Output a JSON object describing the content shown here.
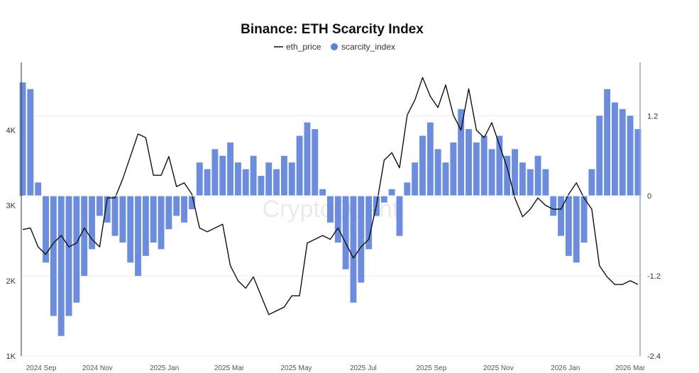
{
  "chart_data": {
    "type": "bar+line",
    "title": "Binance: ETH Scarcity Index",
    "watermark": "CryptoQuant",
    "legend": {
      "placement": "top-center",
      "entries": [
        {
          "name": "eth_price",
          "marker": "line",
          "color": "#111111"
        },
        {
          "name": "scarcity_index",
          "marker": "dot",
          "color": "#5b7fdc"
        }
      ]
    },
    "x_axis": {
      "ticks": [
        {
          "label": "2024 Sep",
          "date": "2024-09-01"
        },
        {
          "label": "2024 Nov",
          "date": "2024-11-01"
        },
        {
          "label": "2025 Jan",
          "date": "2025-01-01"
        },
        {
          "label": "2025 Mar",
          "date": "2025-03-01"
        },
        {
          "label": "2025 May",
          "date": "2025-05-01"
        },
        {
          "label": "2025 Jul",
          "date": "2025-07-01"
        },
        {
          "label": "2025 Sep",
          "date": "2025-09-01"
        },
        {
          "label": "2025 Nov",
          "date": "2025-11-01"
        },
        {
          "label": "2026 Jan",
          "date": "2026-01-01"
        },
        {
          "label": "2026 Mar",
          "date": "2026-03-01"
        }
      ],
      "range": [
        "2024-08-25",
        "2026-03-10"
      ]
    },
    "y_left": {
      "label": "",
      "range": [
        1000,
        4900
      ],
      "ticks": [
        {
          "label": "1K",
          "value": 1000
        },
        {
          "label": "2K",
          "value": 2000
        },
        {
          "label": "3K",
          "value": 3000
        },
        {
          "label": "4K",
          "value": 4000
        }
      ]
    },
    "y_right": {
      "label": "",
      "range": [
        -2.4,
        2.0
      ],
      "ticks": [
        {
          "label": "1.2",
          "value": 1.2
        },
        {
          "label": "0",
          "value": 0
        },
        {
          "label": "-1.2",
          "value": -1.2
        },
        {
          "label": "-2.4",
          "value": -2.4
        }
      ]
    },
    "grid": {
      "horizontal": true,
      "vertical": false
    },
    "series": [
      {
        "name": "eth_price",
        "type": "line",
        "axis": "left",
        "color": "#111111",
        "points": [
          [
            "2024-08-25",
            2680
          ],
          [
            "2024-09-01",
            2700
          ],
          [
            "2024-09-08",
            2450
          ],
          [
            "2024-09-15",
            2350
          ],
          [
            "2024-09-22",
            2500
          ],
          [
            "2024-09-29",
            2600
          ],
          [
            "2024-10-06",
            2450
          ],
          [
            "2024-10-13",
            2500
          ],
          [
            "2024-10-20",
            2700
          ],
          [
            "2024-10-27",
            2550
          ],
          [
            "2024-11-03",
            2450
          ],
          [
            "2024-11-10",
            3100
          ],
          [
            "2024-11-17",
            3100
          ],
          [
            "2024-11-24",
            3350
          ],
          [
            "2024-12-01",
            3650
          ],
          [
            "2024-12-08",
            3950
          ],
          [
            "2024-12-15",
            3900
          ],
          [
            "2024-12-22",
            3400
          ],
          [
            "2024-12-29",
            3400
          ],
          [
            "2025-01-05",
            3650
          ],
          [
            "2025-01-12",
            3250
          ],
          [
            "2025-01-19",
            3300
          ],
          [
            "2025-01-26",
            3150
          ],
          [
            "2025-02-02",
            2700
          ],
          [
            "2025-02-09",
            2650
          ],
          [
            "2025-02-16",
            2700
          ],
          [
            "2025-02-23",
            2750
          ],
          [
            "2025-03-02",
            2200
          ],
          [
            "2025-03-09",
            2000
          ],
          [
            "2025-03-16",
            1900
          ],
          [
            "2025-03-23",
            2050
          ],
          [
            "2025-03-30",
            1800
          ],
          [
            "2025-04-06",
            1550
          ],
          [
            "2025-04-13",
            1600
          ],
          [
            "2025-04-20",
            1650
          ],
          [
            "2025-04-27",
            1800
          ],
          [
            "2025-05-04",
            1800
          ],
          [
            "2025-05-11",
            2500
          ],
          [
            "2025-05-18",
            2550
          ],
          [
            "2025-05-25",
            2600
          ],
          [
            "2025-06-01",
            2550
          ],
          [
            "2025-06-08",
            2700
          ],
          [
            "2025-06-15",
            2500
          ],
          [
            "2025-06-22",
            2300
          ],
          [
            "2025-06-29",
            2450
          ],
          [
            "2025-07-06",
            2550
          ],
          [
            "2025-07-13",
            3000
          ],
          [
            "2025-07-20",
            3600
          ],
          [
            "2025-07-27",
            3700
          ],
          [
            "2025-08-03",
            3500
          ],
          [
            "2025-08-10",
            4200
          ],
          [
            "2025-08-17",
            4400
          ],
          [
            "2025-08-24",
            4700
          ],
          [
            "2025-08-31",
            4450
          ],
          [
            "2025-09-07",
            4300
          ],
          [
            "2025-09-14",
            4600
          ],
          [
            "2025-09-21",
            4200
          ],
          [
            "2025-09-28",
            4000
          ],
          [
            "2025-10-05",
            4550
          ],
          [
            "2025-10-12",
            4000
          ],
          [
            "2025-10-19",
            3900
          ],
          [
            "2025-10-26",
            4100
          ],
          [
            "2025-11-02",
            3800
          ],
          [
            "2025-11-09",
            3500
          ],
          [
            "2025-11-16",
            3100
          ],
          [
            "2025-11-23",
            2850
          ],
          [
            "2025-11-30",
            2950
          ],
          [
            "2025-12-07",
            3100
          ],
          [
            "2025-12-14",
            3000
          ],
          [
            "2025-12-21",
            2950
          ],
          [
            "2025-12-28",
            2950
          ],
          [
            "2026-01-04",
            3150
          ],
          [
            "2026-01-11",
            3300
          ],
          [
            "2026-01-18",
            3100
          ],
          [
            "2026-01-25",
            2950
          ],
          [
            "2026-02-01",
            2200
          ],
          [
            "2026-02-08",
            2050
          ],
          [
            "2026-02-15",
            1950
          ],
          [
            "2026-02-22",
            1950
          ],
          [
            "2026-03-01",
            2000
          ],
          [
            "2026-03-08",
            1950
          ]
        ]
      },
      {
        "name": "scarcity_index",
        "type": "bar",
        "axis": "right",
        "color": "#5b7fdc",
        "points": [
          [
            "2024-08-25",
            1.7
          ],
          [
            "2024-09-01",
            1.6
          ],
          [
            "2024-09-08",
            0.2
          ],
          [
            "2024-09-15",
            -1.0
          ],
          [
            "2024-09-22",
            -1.8
          ],
          [
            "2024-09-29",
            -2.1
          ],
          [
            "2024-10-06",
            -1.8
          ],
          [
            "2024-10-13",
            -1.6
          ],
          [
            "2024-10-20",
            -1.2
          ],
          [
            "2024-10-27",
            -0.8
          ],
          [
            "2024-11-03",
            -0.3
          ],
          [
            "2024-11-10",
            -0.4
          ],
          [
            "2024-11-17",
            -0.6
          ],
          [
            "2024-11-24",
            -0.7
          ],
          [
            "2024-12-01",
            -1.0
          ],
          [
            "2024-12-08",
            -1.2
          ],
          [
            "2024-12-15",
            -0.9
          ],
          [
            "2024-12-22",
            -0.7
          ],
          [
            "2024-12-29",
            -0.8
          ],
          [
            "2025-01-05",
            -0.5
          ],
          [
            "2025-01-12",
            -0.3
          ],
          [
            "2025-01-19",
            -0.4
          ],
          [
            "2025-01-26",
            -0.2
          ],
          [
            "2025-02-02",
            0.5
          ],
          [
            "2025-02-09",
            0.4
          ],
          [
            "2025-02-16",
            0.7
          ],
          [
            "2025-02-23",
            0.6
          ],
          [
            "2025-03-02",
            0.8
          ],
          [
            "2025-03-09",
            0.5
          ],
          [
            "2025-03-16",
            0.4
          ],
          [
            "2025-03-23",
            0.6
          ],
          [
            "2025-03-30",
            0.3
          ],
          [
            "2025-04-06",
            0.5
          ],
          [
            "2025-04-13",
            0.4
          ],
          [
            "2025-04-20",
            0.6
          ],
          [
            "2025-04-27",
            0.5
          ],
          [
            "2025-05-04",
            0.9
          ],
          [
            "2025-05-11",
            1.1
          ],
          [
            "2025-05-18",
            1.0
          ],
          [
            "2025-05-25",
            0.1
          ],
          [
            "2025-06-01",
            -0.4
          ],
          [
            "2025-06-08",
            -0.7
          ],
          [
            "2025-06-15",
            -1.1
          ],
          [
            "2025-06-22",
            -1.6
          ],
          [
            "2025-06-29",
            -1.3
          ],
          [
            "2025-07-06",
            -0.8
          ],
          [
            "2025-07-13",
            -0.3
          ],
          [
            "2025-07-20",
            -0.1
          ],
          [
            "2025-07-27",
            0.1
          ],
          [
            "2025-08-03",
            -0.6
          ],
          [
            "2025-08-10",
            0.2
          ],
          [
            "2025-08-17",
            0.5
          ],
          [
            "2025-08-24",
            0.9
          ],
          [
            "2025-08-31",
            1.1
          ],
          [
            "2025-09-07",
            0.7
          ],
          [
            "2025-09-14",
            0.5
          ],
          [
            "2025-09-21",
            0.8
          ],
          [
            "2025-09-28",
            1.3
          ],
          [
            "2025-10-05",
            1.0
          ],
          [
            "2025-10-12",
            0.8
          ],
          [
            "2025-10-19",
            0.9
          ],
          [
            "2025-10-26",
            0.7
          ],
          [
            "2025-11-02",
            0.9
          ],
          [
            "2025-11-09",
            0.6
          ],
          [
            "2025-11-16",
            0.7
          ],
          [
            "2025-11-23",
            0.5
          ],
          [
            "2025-11-30",
            0.4
          ],
          [
            "2025-12-07",
            0.6
          ],
          [
            "2025-12-14",
            0.4
          ],
          [
            "2025-12-21",
            -0.3
          ],
          [
            "2025-12-28",
            -0.6
          ],
          [
            "2026-01-04",
            -0.9
          ],
          [
            "2026-01-11",
            -1.0
          ],
          [
            "2026-01-18",
            -0.7
          ],
          [
            "2026-01-25",
            0.4
          ],
          [
            "2026-02-01",
            1.2
          ],
          [
            "2026-02-08",
            1.6
          ],
          [
            "2026-02-15",
            1.4
          ],
          [
            "2026-02-22",
            1.3
          ],
          [
            "2026-03-01",
            1.2
          ],
          [
            "2026-03-08",
            1.0
          ]
        ]
      }
    ]
  }
}
